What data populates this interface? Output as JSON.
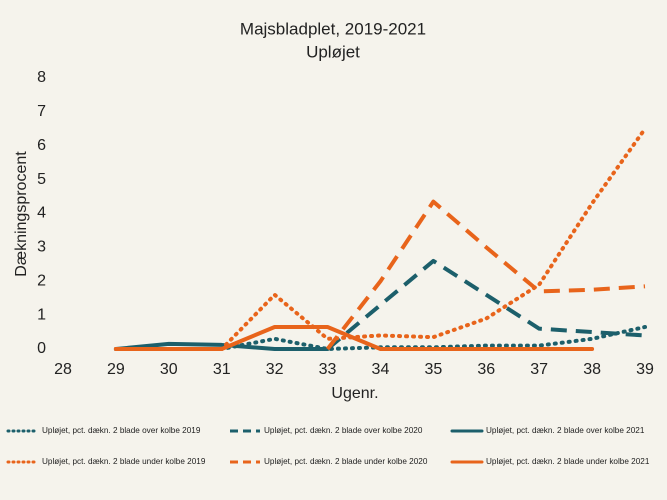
{
  "chart_data": {
    "type": "line",
    "title": "Majsbladplet, 2019-2021",
    "subtitle": "Upløjet",
    "x_label": "Ugenr.",
    "y_label": "Dækningsprocent",
    "x": [
      29,
      30,
      31,
      32,
      33,
      34,
      35,
      36,
      37,
      38,
      39
    ],
    "xlim": [
      28,
      39
    ],
    "xticks": [
      28,
      29,
      30,
      31,
      32,
      33,
      34,
      35,
      36,
      37,
      38,
      39
    ],
    "ylim": [
      0,
      8
    ],
    "yticks": [
      0,
      1,
      2,
      3,
      4,
      5,
      6,
      7,
      8
    ],
    "grid": false,
    "series": [
      {
        "name": "Upløjet, pct. dækn. 2 blade over kolbe 2019",
        "color": "#1c5f6b",
        "dash": "dotted",
        "values": [
          0,
          0,
          0,
          0.3,
          0,
          0.05,
          0.05,
          0.1,
          0.1,
          0.3,
          0.65
        ]
      },
      {
        "name": "Upløjet, pct. dækn. 2 blade over kolbe 2020",
        "color": "#1c5f6b",
        "dash": "dashed",
        "values": [
          null,
          null,
          null,
          null,
          0,
          1.3,
          2.6,
          1.6,
          0.6,
          0.5,
          0.4
        ]
      },
      {
        "name": "Upløjet, pct. dækn. 2 blade over kolbe 2021",
        "color": "#1c5f6b",
        "dash": "solid",
        "values": [
          0,
          0.15,
          0.12,
          0,
          0,
          null,
          null,
          null,
          null,
          null,
          null
        ]
      },
      {
        "name": "Upløjet, pct. dækn. 2 blade under kolbe 2019",
        "color": "#e8641b",
        "dash": "dotted",
        "values": [
          0,
          0,
          0,
          1.6,
          0.3,
          0.4,
          0.35,
          0.9,
          1.9,
          4.3,
          6.5
        ]
      },
      {
        "name": "Upløjet, pct. dækn. 2 blade under kolbe 2020",
        "color": "#e8641b",
        "dash": "dashed",
        "values": [
          null,
          null,
          null,
          null,
          0,
          2.0,
          4.35,
          3.0,
          1.7,
          1.75,
          1.85
        ]
      },
      {
        "name": "Upløjet, pct. dækn. 2 blade under kolbe 2021",
        "color": "#e8641b",
        "dash": "solid",
        "values": [
          0,
          0,
          0,
          0.65,
          0.65,
          0,
          0,
          0,
          0,
          0,
          null
        ]
      }
    ]
  }
}
